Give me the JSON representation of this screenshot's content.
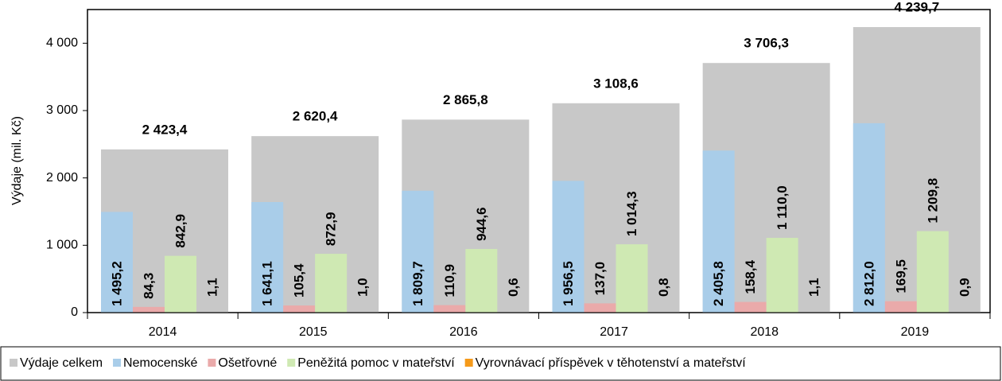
{
  "chart_data": {
    "type": "bar",
    "y_label": "Výdaje (mil. Kč)",
    "categories": [
      "2014",
      "2015",
      "2016",
      "2017",
      "2018",
      "2019"
    ],
    "series": [
      {
        "name": "Výdaje celkem",
        "color": "#c8c8c8",
        "values": [
          2423.4,
          2620.4,
          2865.8,
          3108.6,
          3706.3,
          4239.7
        ],
        "value_labels": [
          "2 423,4",
          "2 620,4",
          "2 865,8",
          "3 108,6",
          "3 706,3",
          "4 239,7"
        ]
      },
      {
        "name": "Nemocenské",
        "color": "#a9cde9",
        "values": [
          1495.2,
          1641.1,
          1809.7,
          1956.5,
          2405.8,
          2812.0
        ],
        "value_labels": [
          "1 495,2",
          "1 641,1",
          "1 809,7",
          "1 956,5",
          "2 405,8",
          "2 812,0"
        ]
      },
      {
        "name": "Ošetřovné",
        "color": "#eaaaaa",
        "values": [
          84.3,
          105.4,
          110.9,
          137.0,
          158.4,
          169.5
        ],
        "value_labels": [
          "84,3",
          "105,4",
          "110,9",
          "137,0",
          "158,4",
          "169,5"
        ]
      },
      {
        "name": "Peněžitá pomoc v mateřství",
        "color": "#cfe9b3",
        "values": [
          842.9,
          872.9,
          944.6,
          1014.3,
          1110.0,
          1209.8
        ],
        "value_labels": [
          "842,9",
          "872,9",
          "944,6",
          "1 014,3",
          "1 110,0",
          "1 209,8"
        ]
      },
      {
        "name": "Vyrovnávací příspěvek v těhotenství a mateřství",
        "color": "#f59a1a",
        "values": [
          1.1,
          1.0,
          0.6,
          0.8,
          1.1,
          0.9
        ],
        "value_labels": [
          "1,1",
          "1,0",
          "0,6",
          "0,8",
          "1,1",
          "0,9"
        ]
      }
    ],
    "ylim": [
      0,
      4500
    ],
    "yticks": [
      0,
      {
        "value": 1000,
        "label": "1 000"
      },
      {
        "value": 2000,
        "label": "2 000"
      },
      {
        "value": 3000,
        "label": "3 000"
      },
      {
        "value": 4000,
        "label": "4 000"
      }
    ],
    "legend": "bottom"
  }
}
